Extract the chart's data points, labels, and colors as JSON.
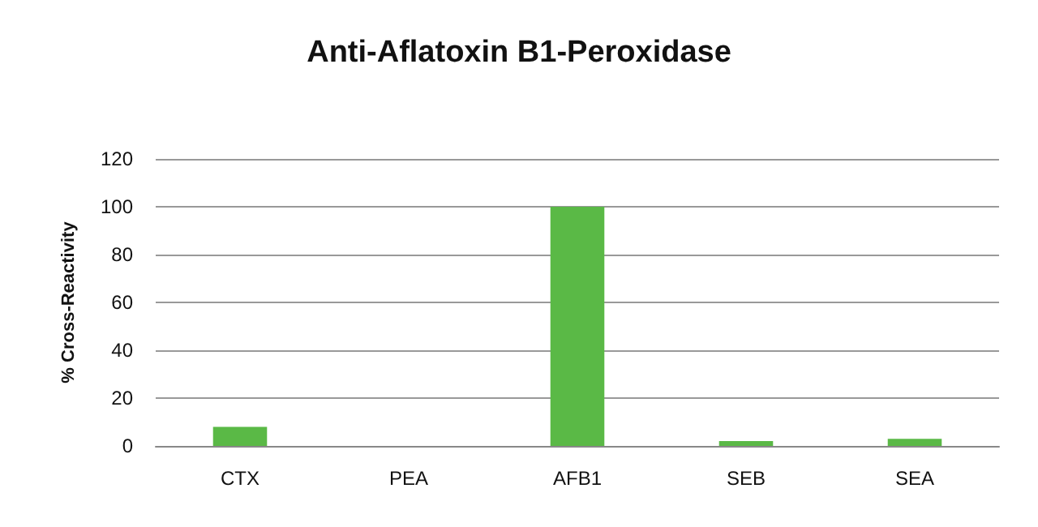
{
  "chart_data": {
    "type": "bar",
    "title": "Anti-Aflatoxin B1-Peroxidase",
    "ylabel": "% Cross-Reactivity",
    "categories": [
      "CTX",
      "PEA",
      "AFB1",
      "SEB",
      "SEA"
    ],
    "values": [
      8,
      0,
      100,
      2,
      3
    ],
    "color": "#5ab946",
    "ylim": [
      0,
      120
    ],
    "yticks": [
      0,
      20,
      40,
      60,
      80,
      100,
      120
    ],
    "grid": "y"
  }
}
